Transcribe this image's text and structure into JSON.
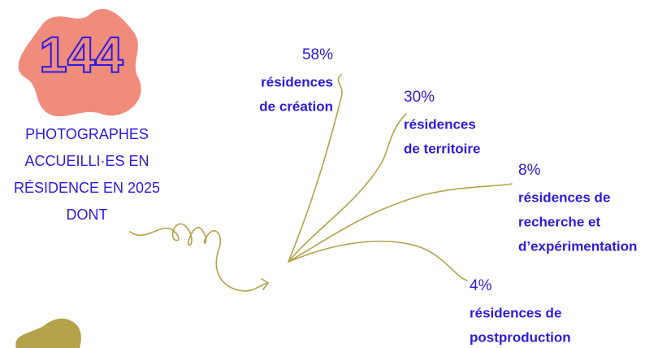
{
  "headline": {
    "number": "144",
    "lines": [
      "PHOTOGRAPHES",
      "ACCUEILLI·ES EN",
      "RÉSIDENCE EN 2025",
      "DONT"
    ]
  },
  "branches": [
    {
      "percent": "58%",
      "lines": [
        "résidences",
        "de création"
      ]
    },
    {
      "percent": "30%",
      "lines": [
        "résidences",
        "de territoire"
      ]
    },
    {
      "percent": "8%",
      "lines": [
        "résidences de",
        "recherche et",
        "d’expérimentation"
      ]
    },
    {
      "percent": "4%",
      "lines": [
        "résidences de",
        "postproduction"
      ]
    }
  ]
}
